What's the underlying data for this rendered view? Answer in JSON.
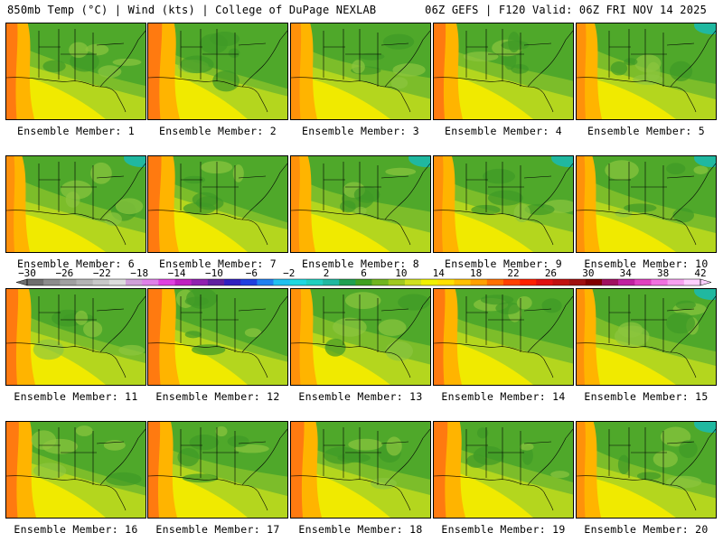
{
  "header": {
    "left": "850mb Temp (°C) | Wind (kts) | College of DuPage NEXLAB",
    "right": "06Z GEFS | F120 Valid: 06Z FRI NOV 14 2025"
  },
  "caption_prefix": "Ensemble Member: ",
  "members": [
    {
      "label": "Ensemble Member: 1",
      "number": 1,
      "warmth": 0.55
    },
    {
      "label": "Ensemble Member: 2",
      "number": 2,
      "warmth": 0.75
    },
    {
      "label": "Ensemble Member: 3",
      "number": 3,
      "warmth": 0.45
    },
    {
      "label": "Ensemble Member: 4",
      "number": 4,
      "warmth": 0.6
    },
    {
      "label": "Ensemble Member: 5",
      "number": 5,
      "warmth": 0.4
    },
    {
      "label": "Ensemble Member: 6",
      "number": 6,
      "warmth": 0.3
    },
    {
      "label": "Ensemble Member: 7",
      "number": 7,
      "warmth": 0.7
    },
    {
      "label": "Ensemble Member: 8",
      "number": 8,
      "warmth": 0.35
    },
    {
      "label": "Ensemble Member: 9",
      "number": 9,
      "warmth": 0.4
    },
    {
      "label": "Ensemble Member: 10",
      "number": 10,
      "warmth": 0.3
    },
    {
      "label": "Ensemble Member: 11",
      "number": 11,
      "warmth": 0.6
    },
    {
      "label": "Ensemble Member: 12",
      "number": 12,
      "warmth": 0.75
    },
    {
      "label": "Ensemble Member: 13",
      "number": 13,
      "warmth": 0.45
    },
    {
      "label": "Ensemble Member: 14",
      "number": 14,
      "warmth": 0.55
    },
    {
      "label": "Ensemble Member: 15",
      "number": 15,
      "warmth": 0.3
    },
    {
      "label": "Ensemble Member: 16",
      "number": 16,
      "warmth": 0.65
    },
    {
      "label": "Ensemble Member: 17",
      "number": 17,
      "warmth": 0.6
    },
    {
      "label": "Ensemble Member: 18",
      "number": 18,
      "warmth": 0.7
    },
    {
      "label": "Ensemble Member: 19",
      "number": 19,
      "warmth": 0.75
    },
    {
      "label": "Ensemble Member: 20",
      "number": 20,
      "warmth": 0.35
    }
  ],
  "colorbar": {
    "unit": "°C",
    "tick_labels": [
      "-30",
      "-26",
      "-22",
      "-18",
      "-14",
      "-10",
      "-6",
      "-2",
      "2",
      "6",
      "10",
      "14",
      "18",
      "22",
      "26",
      "30",
      "34",
      "38",
      "42"
    ],
    "colors": [
      "#6e6e6e",
      "#8c8c8c",
      "#a0a0a0",
      "#b4b4b4",
      "#c8c8c8",
      "#dcdcdc",
      "#d0a0d8",
      "#e080e8",
      "#e040e0",
      "#c020c0",
      "#9020b0",
      "#6020a0",
      "#3020c0",
      "#2040e0",
      "#2080f0",
      "#20c0f0",
      "#20d8e0",
      "#20d0c0",
      "#20b8a0",
      "#20a050",
      "#40a020",
      "#70b420",
      "#a0c820",
      "#d0e020",
      "#f0f000",
      "#ffe000",
      "#ffc000",
      "#ffa000",
      "#ff7000",
      "#ff4000",
      "#ff2000",
      "#e01010",
      "#c01010",
      "#a01010",
      "#800000",
      "#a01060",
      "#c020a0",
      "#e040c0",
      "#f070e0",
      "#f8a0f0",
      "#ffd0ff"
    ]
  }
}
